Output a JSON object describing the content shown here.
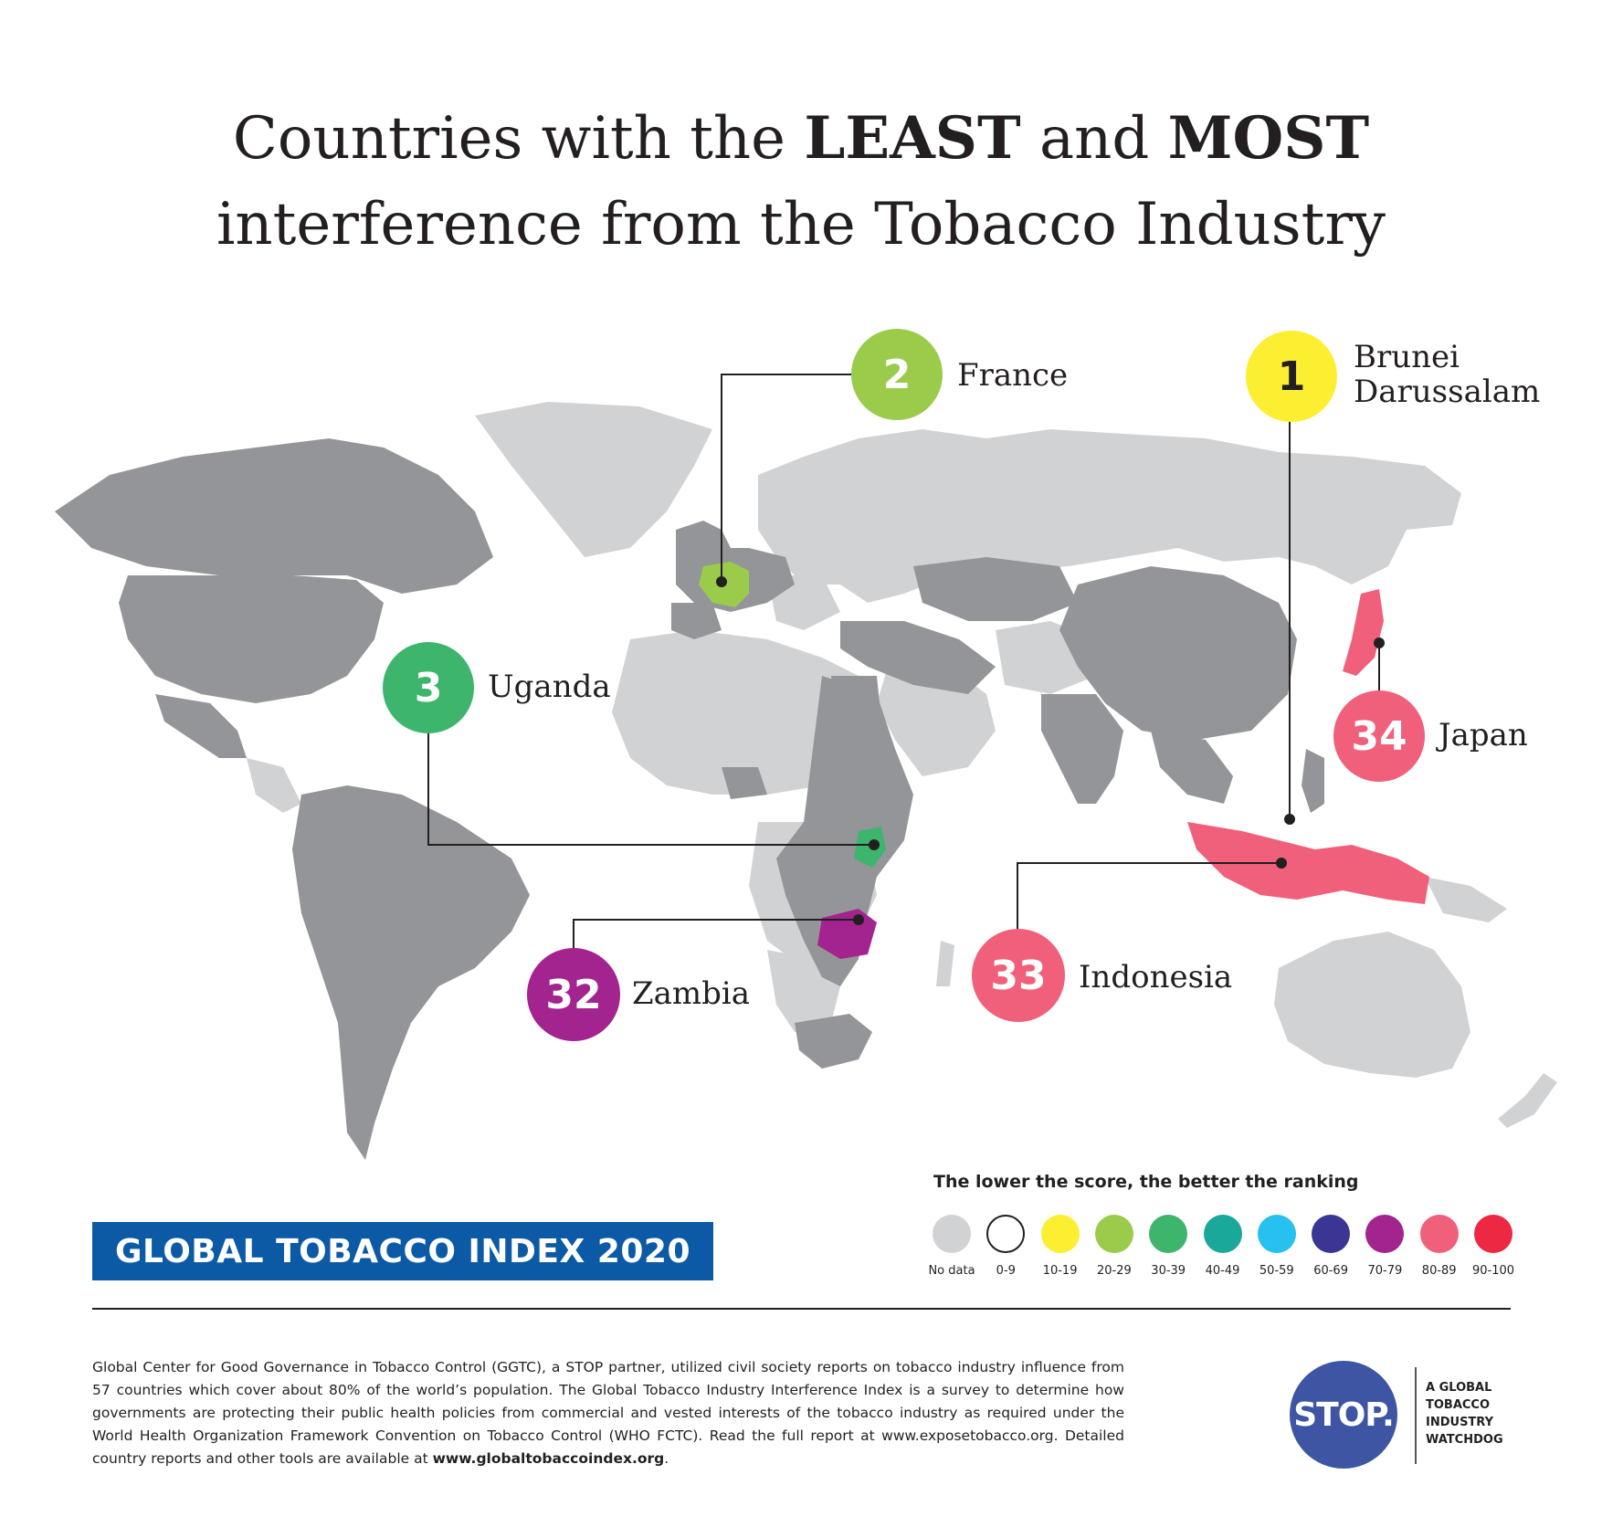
{
  "title": {
    "line1_a": "Countries with the ",
    "line1_b": "LEAST",
    "line1_c": " and ",
    "line1_d": "MOST",
    "line2": "interference from the Tobacco Industry"
  },
  "callouts": [
    {
      "rank": "1",
      "country_line1": "Brunei",
      "country_line2": "Darussalam",
      "color": "#fcee30",
      "text_color": "#231f20"
    },
    {
      "rank": "2",
      "country_line1": "France",
      "country_line2": "",
      "color": "#9bcb4b",
      "text_color": "#ffffff"
    },
    {
      "rank": "3",
      "country_line1": "Uganda",
      "country_line2": "",
      "color": "#3db56d",
      "text_color": "#ffffff"
    },
    {
      "rank": "32",
      "country_line1": "Zambia",
      "country_line2": "",
      "color": "#a3238f",
      "text_color": "#ffffff"
    },
    {
      "rank": "33",
      "country_line1": "Indonesia",
      "country_line2": "",
      "color": "#f0607a",
      "text_color": "#ffffff"
    },
    {
      "rank": "34",
      "country_line1": "Japan",
      "country_line2": "",
      "color": "#f0607a",
      "text_color": "#ffffff"
    }
  ],
  "badge": "GLOBAL TOBACCO INDEX 2020",
  "legend": {
    "title": "The lower the score, the better the ranking",
    "items": [
      {
        "label": "No data",
        "color": "#d1d2d4"
      },
      {
        "label": "0-9",
        "color": "#ffffff"
      },
      {
        "label": "10-19",
        "color": "#fcee30"
      },
      {
        "label": "20-29",
        "color": "#9bcb4b"
      },
      {
        "label": "30-39",
        "color": "#3db56d"
      },
      {
        "label": "40-49",
        "color": "#1aa89a"
      },
      {
        "label": "50-59",
        "color": "#27c1ef"
      },
      {
        "label": "60-69",
        "color": "#3b3593"
      },
      {
        "label": "70-79",
        "color": "#a3238f"
      },
      {
        "label": "80-89",
        "color": "#f0607a"
      },
      {
        "label": "90-100",
        "color": "#ec2842"
      }
    ]
  },
  "map_colors": {
    "surveyed": "#939598",
    "no_data": "#d1d2d4",
    "leader_line": "#231f20"
  },
  "footer": {
    "text": "Global Center for Good Governance in Tobacco Control (GGTC), a STOP partner, utilized civil society reports on tobacco industry influence from 57 countries which cover about 80% of the world’s population. The Global Tobacco Industry Interference Index is a survey to determine how governments are protecting their public health policies from commercial and vested interests of the tobacco industry as required under the World Health Organization Framework Convention on Tobacco Control (WHO FCTC). Read the full report at www.exposetobacco.org. Detailed country reports and other tools are available at ",
    "link": "www.globaltobaccoindex.org",
    "end": "."
  },
  "logo": {
    "text": "STOP.",
    "tagline_1": "A GLOBAL",
    "tagline_2": "TOBACCO",
    "tagline_3": "INDUSTRY",
    "tagline_4": "WATCHDOG"
  }
}
